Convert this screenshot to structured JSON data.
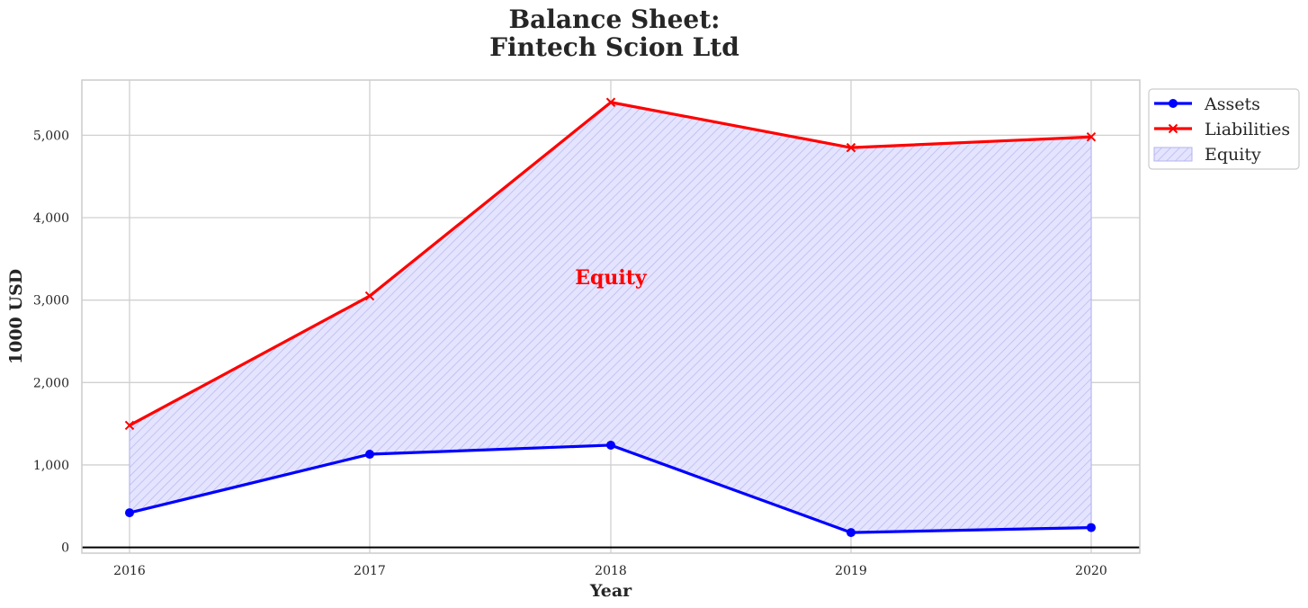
{
  "chart_data": {
    "type": "line",
    "title_line1": "Balance Sheet:",
    "title_line2": "Fintech Scion Ltd",
    "xlabel": "Year",
    "ylabel": "1000 USD",
    "categories": [
      "2016",
      "2017",
      "2018",
      "2019",
      "2020"
    ],
    "ylim": [
      -70,
      5670
    ],
    "yticks": [
      0,
      1000,
      2000,
      3000,
      4000,
      5000
    ],
    "ytick_labels": [
      "0",
      "1,000",
      "2,000",
      "3,000",
      "4,000",
      "5,000"
    ],
    "grid": true,
    "legend_position": "upper-right-outside",
    "series": [
      {
        "name": "Assets",
        "values": [
          420,
          1130,
          1240,
          180,
          240
        ],
        "color": "#0000ff",
        "marker": "circle"
      },
      {
        "name": "Liabilities",
        "values": [
          1480,
          3050,
          5400,
          4850,
          4980
        ],
        "color": "#ff0000",
        "marker": "x"
      }
    ],
    "fill": {
      "name": "Equity",
      "between": [
        "Assets",
        "Liabilities"
      ],
      "color": "#0000ff",
      "pattern": "diagonal-hatch"
    },
    "annotation": {
      "text": "Equity",
      "x": "2018",
      "y": 3280,
      "color": "#ff0000"
    }
  }
}
